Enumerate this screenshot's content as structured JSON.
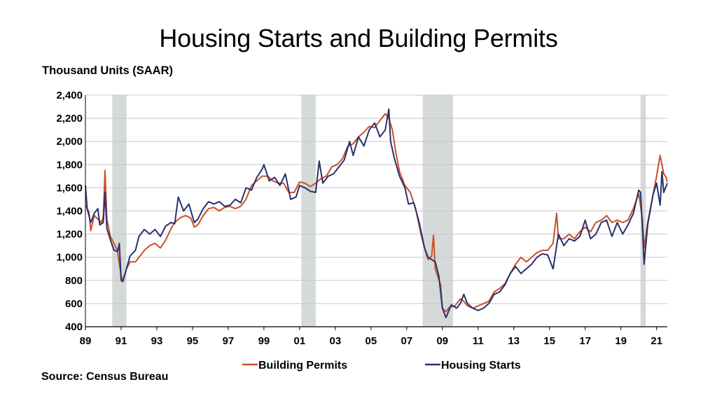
{
  "chart_data": {
    "type": "line",
    "title": "Housing Starts and Building Permits",
    "ylabel": "Thousand Units (SAAR)",
    "source": "Source: Census Bureau",
    "ylim": [
      400,
      2400
    ],
    "yticks": [
      "400",
      "600",
      "800",
      "1,000",
      "1,200",
      "1,400",
      "1,600",
      "1,800",
      "2,000",
      "2,200",
      "2,400"
    ],
    "xlim": [
      1989.0,
      2021.6
    ],
    "xticks": [
      {
        "label": "89",
        "x": 1989
      },
      {
        "label": "91",
        "x": 1991
      },
      {
        "label": "93",
        "x": 1993
      },
      {
        "label": "95",
        "x": 1995
      },
      {
        "label": "97",
        "x": 1997
      },
      {
        "label": "99",
        "x": 1999
      },
      {
        "label": "01",
        "x": 2001
      },
      {
        "label": "03",
        "x": 2003
      },
      {
        "label": "05",
        "x": 2005
      },
      {
        "label": "07",
        "x": 2007
      },
      {
        "label": "09",
        "x": 2009
      },
      {
        "label": "11",
        "x": 2011
      },
      {
        "label": "13",
        "x": 2013
      },
      {
        "label": "15",
        "x": 2015
      },
      {
        "label": "17",
        "x": 2017
      },
      {
        "label": "19",
        "x": 2019
      },
      {
        "label": "21",
        "x": 2021
      }
    ],
    "grid": true,
    "legend_position": "bottom",
    "recessions": [
      [
        1990.5,
        1991.3
      ],
      [
        2001.1,
        2001.9
      ],
      [
        2007.9,
        2009.6
      ],
      [
        2020.1,
        2020.4
      ]
    ],
    "series": [
      {
        "name": "Building Permits",
        "color": "#c9502a",
        "points": [
          [
            1989.0,
            1450
          ],
          [
            1989.2,
            1390
          ],
          [
            1989.3,
            1230
          ],
          [
            1989.5,
            1360
          ],
          [
            1989.7,
            1330
          ],
          [
            1989.9,
            1300
          ],
          [
            1990.0,
            1350
          ],
          [
            1990.1,
            1750
          ],
          [
            1990.2,
            1330
          ],
          [
            1990.4,
            1180
          ],
          [
            1990.6,
            1120
          ],
          [
            1990.8,
            1050
          ],
          [
            1991.0,
            840
          ],
          [
            1991.1,
            800
          ],
          [
            1991.3,
            900
          ],
          [
            1991.5,
            960
          ],
          [
            1991.8,
            960
          ],
          [
            1992.0,
            1000
          ],
          [
            1992.3,
            1060
          ],
          [
            1992.6,
            1100
          ],
          [
            1992.9,
            1120
          ],
          [
            1993.2,
            1080
          ],
          [
            1993.5,
            1150
          ],
          [
            1993.8,
            1250
          ],
          [
            1994.0,
            1300
          ],
          [
            1994.3,
            1340
          ],
          [
            1994.6,
            1360
          ],
          [
            1994.9,
            1340
          ],
          [
            1995.1,
            1260
          ],
          [
            1995.3,
            1280
          ],
          [
            1995.6,
            1360
          ],
          [
            1995.9,
            1420
          ],
          [
            1996.2,
            1430
          ],
          [
            1996.5,
            1400
          ],
          [
            1996.8,
            1430
          ],
          [
            1997.1,
            1440
          ],
          [
            1997.4,
            1420
          ],
          [
            1997.7,
            1440
          ],
          [
            1998.0,
            1500
          ],
          [
            1998.3,
            1620
          ],
          [
            1998.6,
            1660
          ],
          [
            1998.9,
            1700
          ],
          [
            1999.2,
            1700
          ],
          [
            1999.5,
            1660
          ],
          [
            1999.8,
            1640
          ],
          [
            2000.1,
            1640
          ],
          [
            2000.4,
            1560
          ],
          [
            2000.7,
            1560
          ],
          [
            2001.0,
            1650
          ],
          [
            2001.3,
            1640
          ],
          [
            2001.6,
            1610
          ],
          [
            2001.9,
            1640
          ],
          [
            2002.2,
            1680
          ],
          [
            2002.5,
            1700
          ],
          [
            2002.8,
            1780
          ],
          [
            2003.1,
            1800
          ],
          [
            2003.4,
            1850
          ],
          [
            2003.7,
            1960
          ],
          [
            2004.0,
            1980
          ],
          [
            2004.3,
            2040
          ],
          [
            2004.6,
            2080
          ],
          [
            2004.9,
            2130
          ],
          [
            2005.2,
            2120
          ],
          [
            2005.5,
            2180
          ],
          [
            2005.8,
            2240
          ],
          [
            2006.0,
            2200
          ],
          [
            2006.2,
            2100
          ],
          [
            2006.4,
            1900
          ],
          [
            2006.6,
            1740
          ],
          [
            2006.9,
            1620
          ],
          [
            2007.2,
            1560
          ],
          [
            2007.5,
            1420
          ],
          [
            2007.8,
            1200
          ],
          [
            2008.0,
            1080
          ],
          [
            2008.2,
            980
          ],
          [
            2008.4,
            1010
          ],
          [
            2008.5,
            1190
          ],
          [
            2008.6,
            900
          ],
          [
            2008.9,
            760
          ],
          [
            2009.0,
            560
          ],
          [
            2009.2,
            530
          ],
          [
            2009.4,
            570
          ],
          [
            2009.7,
            580
          ],
          [
            2010.0,
            640
          ],
          [
            2010.2,
            620
          ],
          [
            2010.4,
            580
          ],
          [
            2010.7,
            560
          ],
          [
            2011.0,
            580
          ],
          [
            2011.3,
            600
          ],
          [
            2011.6,
            620
          ],
          [
            2011.9,
            700
          ],
          [
            2012.2,
            730
          ],
          [
            2012.5,
            770
          ],
          [
            2012.8,
            860
          ],
          [
            2013.1,
            940
          ],
          [
            2013.4,
            1000
          ],
          [
            2013.7,
            960
          ],
          [
            2014.0,
            1000
          ],
          [
            2014.3,
            1040
          ],
          [
            2014.6,
            1060
          ],
          [
            2014.9,
            1060
          ],
          [
            2015.2,
            1120
          ],
          [
            2015.4,
            1380
          ],
          [
            2015.5,
            1160
          ],
          [
            2015.8,
            1160
          ],
          [
            2016.1,
            1200
          ],
          [
            2016.4,
            1160
          ],
          [
            2016.7,
            1220
          ],
          [
            2017.0,
            1260
          ],
          [
            2017.3,
            1220
          ],
          [
            2017.6,
            1300
          ],
          [
            2017.9,
            1320
          ],
          [
            2018.2,
            1360
          ],
          [
            2018.5,
            1300
          ],
          [
            2018.8,
            1320
          ],
          [
            2019.1,
            1300
          ],
          [
            2019.4,
            1320
          ],
          [
            2019.7,
            1420
          ],
          [
            2020.0,
            1550
          ],
          [
            2020.2,
            1340
          ],
          [
            2020.3,
            1080
          ],
          [
            2020.5,
            1300
          ],
          [
            2020.8,
            1540
          ],
          [
            2021.0,
            1700
          ],
          [
            2021.2,
            1880
          ],
          [
            2021.4,
            1720
          ],
          [
            2021.5,
            1700
          ],
          [
            2021.6,
            1650
          ]
        ]
      },
      {
        "name": "Housing Starts",
        "color": "#27326e",
        "points": [
          [
            1989.0,
            1620
          ],
          [
            1989.1,
            1420
          ],
          [
            1989.3,
            1300
          ],
          [
            1989.5,
            1380
          ],
          [
            1989.7,
            1420
          ],
          [
            1989.8,
            1280
          ],
          [
            1990.0,
            1300
          ],
          [
            1990.1,
            1560
          ],
          [
            1990.2,
            1250
          ],
          [
            1990.4,
            1150
          ],
          [
            1990.6,
            1060
          ],
          [
            1990.8,
            1050
          ],
          [
            1990.9,
            1120
          ],
          [
            1991.0,
            800
          ],
          [
            1991.1,
            790
          ],
          [
            1991.3,
            900
          ],
          [
            1991.5,
            1010
          ],
          [
            1991.8,
            1060
          ],
          [
            1992.0,
            1180
          ],
          [
            1992.3,
            1240
          ],
          [
            1992.6,
            1200
          ],
          [
            1992.9,
            1240
          ],
          [
            1993.2,
            1180
          ],
          [
            1993.5,
            1270
          ],
          [
            1993.8,
            1300
          ],
          [
            1994.0,
            1290
          ],
          [
            1994.2,
            1520
          ],
          [
            1994.5,
            1400
          ],
          [
            1994.8,
            1460
          ],
          [
            1995.1,
            1300
          ],
          [
            1995.3,
            1330
          ],
          [
            1995.6,
            1420
          ],
          [
            1995.9,
            1480
          ],
          [
            1996.2,
            1460
          ],
          [
            1996.5,
            1480
          ],
          [
            1996.8,
            1440
          ],
          [
            1997.1,
            1450
          ],
          [
            1997.4,
            1500
          ],
          [
            1997.7,
            1470
          ],
          [
            1998.0,
            1600
          ],
          [
            1998.3,
            1580
          ],
          [
            1998.6,
            1690
          ],
          [
            1998.9,
            1760
          ],
          [
            1999.0,
            1800
          ],
          [
            1999.3,
            1660
          ],
          [
            1999.6,
            1690
          ],
          [
            1999.9,
            1620
          ],
          [
            2000.2,
            1720
          ],
          [
            2000.5,
            1500
          ],
          [
            2000.8,
            1520
          ],
          [
            2001.0,
            1620
          ],
          [
            2001.3,
            1600
          ],
          [
            2001.6,
            1570
          ],
          [
            2001.9,
            1560
          ],
          [
            2002.1,
            1830
          ],
          [
            2002.3,
            1640
          ],
          [
            2002.6,
            1700
          ],
          [
            2002.9,
            1720
          ],
          [
            2003.2,
            1780
          ],
          [
            2003.5,
            1840
          ],
          [
            2003.8,
            2000
          ],
          [
            2004.0,
            1880
          ],
          [
            2004.3,
            2040
          ],
          [
            2004.6,
            1960
          ],
          [
            2004.9,
            2100
          ],
          [
            2005.2,
            2160
          ],
          [
            2005.5,
            2040
          ],
          [
            2005.8,
            2100
          ],
          [
            2006.0,
            2280
          ],
          [
            2006.1,
            2000
          ],
          [
            2006.3,
            1860
          ],
          [
            2006.6,
            1700
          ],
          [
            2006.9,
            1600
          ],
          [
            2007.1,
            1460
          ],
          [
            2007.4,
            1470
          ],
          [
            2007.7,
            1300
          ],
          [
            2008.0,
            1080
          ],
          [
            2008.2,
            1000
          ],
          [
            2008.4,
            980
          ],
          [
            2008.6,
            960
          ],
          [
            2008.8,
            840
          ],
          [
            2009.0,
            560
          ],
          [
            2009.2,
            480
          ],
          [
            2009.5,
            590
          ],
          [
            2009.8,
            560
          ],
          [
            2010.0,
            600
          ],
          [
            2010.2,
            680
          ],
          [
            2010.4,
            600
          ],
          [
            2010.7,
            560
          ],
          [
            2011.0,
            540
          ],
          [
            2011.3,
            560
          ],
          [
            2011.6,
            600
          ],
          [
            2011.9,
            680
          ],
          [
            2012.2,
            700
          ],
          [
            2012.5,
            760
          ],
          [
            2012.8,
            860
          ],
          [
            2013.1,
            920
          ],
          [
            2013.4,
            860
          ],
          [
            2013.7,
            900
          ],
          [
            2014.0,
            940
          ],
          [
            2014.3,
            1000
          ],
          [
            2014.6,
            1030
          ],
          [
            2014.9,
            1020
          ],
          [
            2015.2,
            900
          ],
          [
            2015.5,
            1200
          ],
          [
            2015.8,
            1100
          ],
          [
            2016.1,
            1160
          ],
          [
            2016.4,
            1140
          ],
          [
            2016.7,
            1180
          ],
          [
            2017.0,
            1320
          ],
          [
            2017.3,
            1160
          ],
          [
            2017.6,
            1200
          ],
          [
            2017.9,
            1300
          ],
          [
            2018.2,
            1320
          ],
          [
            2018.5,
            1180
          ],
          [
            2018.8,
            1300
          ],
          [
            2019.1,
            1200
          ],
          [
            2019.4,
            1280
          ],
          [
            2019.7,
            1380
          ],
          [
            2020.0,
            1580
          ],
          [
            2020.1,
            1560
          ],
          [
            2020.2,
            1280
          ],
          [
            2020.3,
            940
          ],
          [
            2020.5,
            1280
          ],
          [
            2020.8,
            1540
          ],
          [
            2021.0,
            1640
          ],
          [
            2021.2,
            1450
          ],
          [
            2021.3,
            1740
          ],
          [
            2021.4,
            1560
          ],
          [
            2021.6,
            1640
          ]
        ]
      }
    ]
  }
}
